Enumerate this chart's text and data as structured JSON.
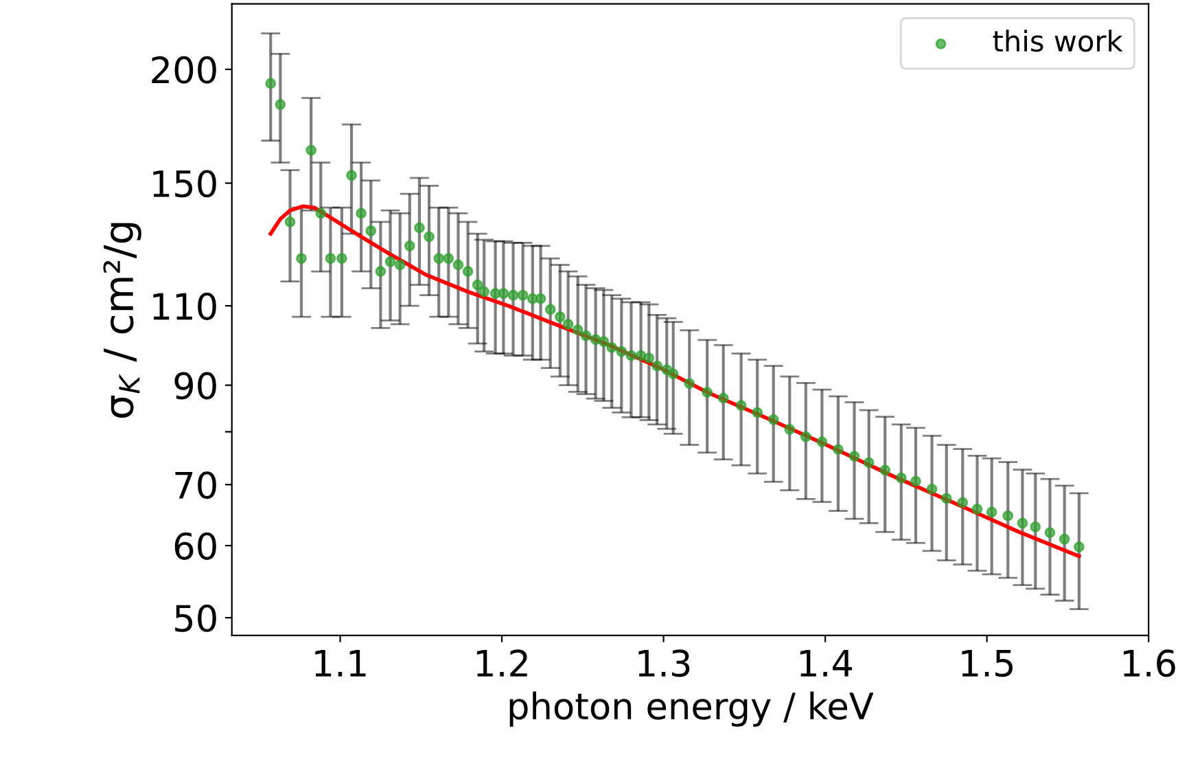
{
  "chart_data": {
    "type": "scatter",
    "xlabel": "photon energy / keV",
    "ylabel": "σ$_{K}$ / cm²/g",
    "log": "y",
    "xlim": [
      1.033,
      1.6
    ],
    "xticks": [
      1.1,
      1.2,
      1.3,
      1.4,
      1.5,
      1.6
    ],
    "ylim": [
      47.8,
      236
    ],
    "yticks": [
      50,
      60,
      70,
      {
        "value": 80,
        "label": null
      },
      90,
      110,
      150,
      200
    ],
    "grid": false,
    "legend": "top right",
    "series": [
      {
        "type": "line",
        "color": "#ff0000",
        "marker": "none",
        "line_style": "solid",
        "x": [
          1.057,
          1.063,
          1.069,
          1.077,
          1.084,
          1.094,
          1.113,
          1.132,
          1.153,
          1.179,
          1.204,
          1.23,
          1.264,
          1.298,
          1.327,
          1.366,
          1.4,
          1.442,
          1.485,
          1.519,
          1.557
        ],
        "values": [
          132,
          137,
          140,
          141.5,
          141,
          137.5,
          131,
          125,
          119,
          114,
          110,
          105.5,
          100,
          94,
          88.4,
          82.5,
          77.5,
          71.5,
          66.2,
          62.2,
          58.4
        ]
      },
      {
        "name": "this work",
        "color": "#2ca02c",
        "marker": "circle",
        "x": [
          1.057,
          1.063,
          1.069,
          1.076,
          1.082,
          1.088,
          1.094,
          1.101,
          1.107,
          1.113,
          1.119,
          1.125,
          1.131,
          1.137,
          1.143,
          1.149,
          1.155,
          1.161,
          1.167,
          1.173,
          1.179,
          1.185,
          1.189,
          1.196,
          1.201,
          1.207,
          1.213,
          1.219,
          1.224,
          1.23,
          1.236,
          1.241,
          1.247,
          1.252,
          1.258,
          1.263,
          1.268,
          1.274,
          1.28,
          1.286,
          1.291,
          1.296,
          1.302,
          1.306,
          1.316,
          1.327,
          1.337,
          1.348,
          1.358,
          1.368,
          1.378,
          1.388,
          1.398,
          1.408,
          1.418,
          1.427,
          1.437,
          1.447,
          1.456,
          1.466,
          1.475,
          1.485,
          1.494,
          1.503,
          1.513,
          1.522,
          1.53,
          1.539,
          1.548,
          1.557
        ],
        "values": [
          193,
          183,
          136,
          124,
          163,
          139,
          124,
          124,
          153,
          139,
          133,
          120,
          123,
          122,
          128,
          134,
          131,
          124,
          124,
          122,
          120,
          116,
          114,
          113.5,
          113.5,
          113,
          113,
          112,
          112,
          109,
          107,
          105,
          103.5,
          102,
          101,
          100.5,
          99,
          98,
          97,
          97,
          96.4,
          94.5,
          93.6,
          92.6,
          90.4,
          88.4,
          87.1,
          85.5,
          84,
          82.5,
          80.5,
          79,
          78,
          76.5,
          75.2,
          74,
          72.6,
          71.2,
          70.6,
          69.2,
          67.6,
          66.9,
          65.8,
          65.3,
          64.7,
          63.5,
          62.9,
          62,
          61,
          59.8
        ],
        "errors": [
          26,
          25,
          19,
          17,
          23,
          19,
          17,
          17,
          21,
          19,
          18,
          16,
          17,
          17,
          18,
          18,
          18,
          17,
          17,
          17,
          16,
          16,
          16,
          16,
          16,
          16,
          16,
          16,
          16,
          15,
          15,
          15,
          15,
          14,
          14,
          14,
          14,
          14,
          14,
          14,
          14,
          13,
          13,
          13,
          13,
          12.5,
          12.5,
          12,
          12,
          12,
          11.5,
          11.5,
          11,
          11,
          11,
          10.5,
          10.5,
          10.3,
          10.2,
          10,
          9.8,
          9.7,
          9.5,
          9.5,
          9.4,
          9.2,
          9.1,
          9,
          8.8,
          8.7
        ]
      }
    ]
  }
}
